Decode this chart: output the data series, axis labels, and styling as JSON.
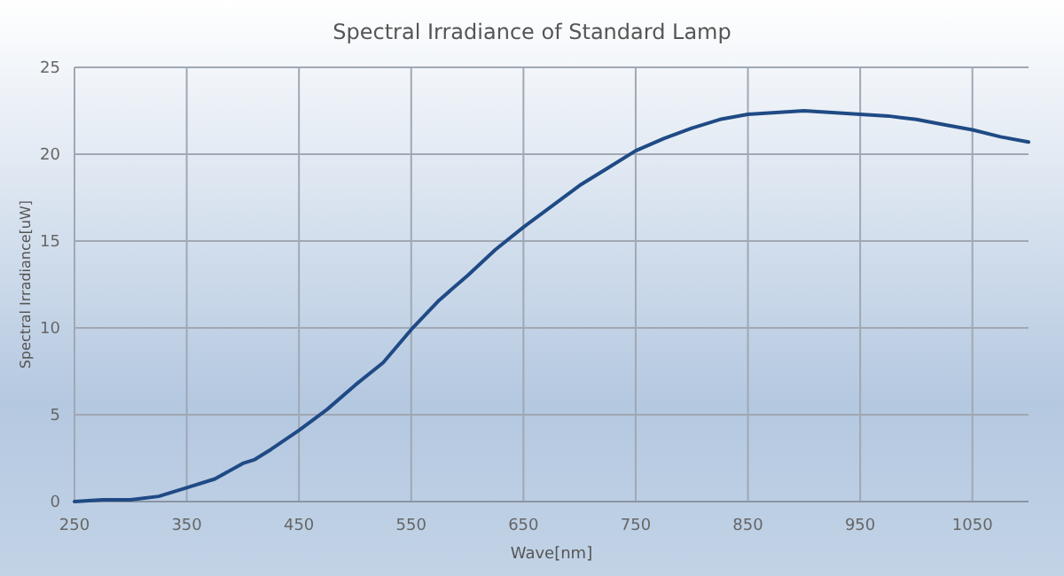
{
  "chart_data": {
    "type": "line",
    "title": "Spectral Irradiance of Standard Lamp",
    "xlabel": "Wave[nm]",
    "ylabel": "Spectral Irradiance[uW]",
    "x": [
      250,
      275,
      300,
      325,
      350,
      375,
      400,
      410,
      425,
      450,
      475,
      500,
      525,
      550,
      575,
      600,
      625,
      650,
      675,
      700,
      725,
      750,
      775,
      800,
      825,
      850,
      875,
      900,
      925,
      950,
      975,
      1000,
      1025,
      1050,
      1075,
      1100
    ],
    "series": [
      {
        "color": "#1f4a85",
        "values": [
          0.0,
          0.1,
          0.1,
          0.3,
          0.8,
          1.3,
          2.2,
          2.4,
          3.0,
          4.1,
          5.3,
          6.7,
          8.0,
          9.9,
          11.6,
          13.0,
          14.5,
          15.8,
          17.0,
          18.2,
          19.2,
          20.2,
          20.9,
          21.5,
          22.0,
          22.3,
          22.4,
          22.5,
          22.4,
          22.3,
          22.2,
          22.0,
          21.7,
          21.4,
          21.0,
          20.7
        ]
      }
    ],
    "xlim": [
      250,
      1100
    ],
    "xticks": [
      250,
      350,
      450,
      550,
      650,
      750,
      850,
      950,
      1050
    ],
    "ylim": [
      0,
      25
    ],
    "yticks": [
      0,
      5,
      10,
      15,
      20,
      25
    ],
    "grid": true,
    "marker": "none",
    "line_style": "solid"
  }
}
